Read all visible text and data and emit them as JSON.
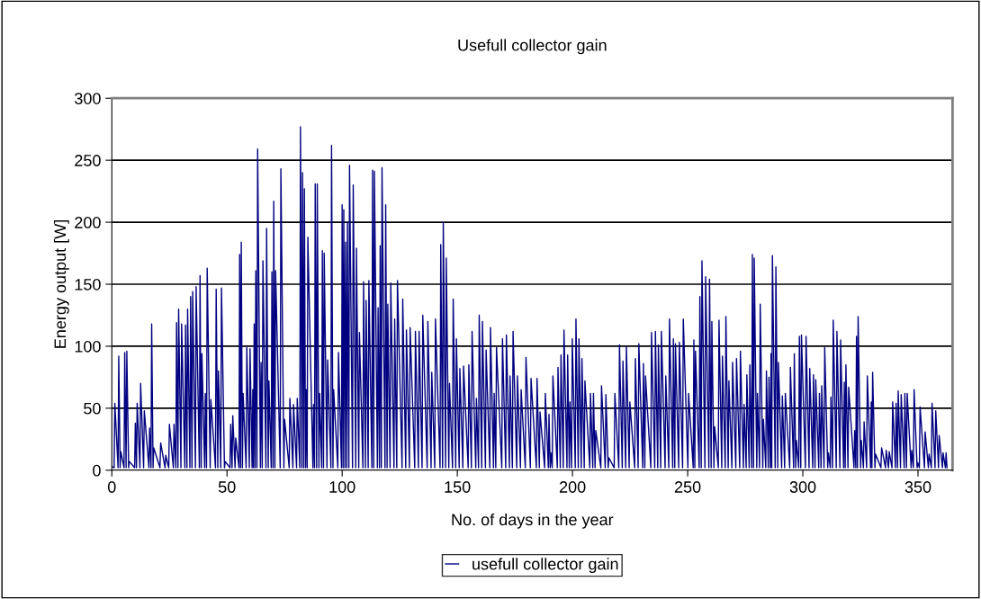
{
  "chart_data": {
    "type": "line",
    "title": "Usefull collector gain",
    "xlabel": "No. of days in the year",
    "ylabel": "Energy output [W]",
    "xlim": [
      0,
      365
    ],
    "xticks": [
      0,
      50,
      100,
      150,
      200,
      250,
      300,
      350
    ],
    "ylim": [
      0,
      300
    ],
    "yticks": [
      0,
      50,
      100,
      150,
      200,
      250,
      300
    ],
    "grid": "y",
    "legend": "bottom",
    "marker": "none",
    "line_style": "solid",
    "series": [
      {
        "name": "usefull collector gain",
        "color": "#000080",
        "x": [
          0,
          1.0,
          1.3,
          2.7,
          3.0,
          3.6,
          3.9,
          5.3,
          5.6,
          6.2,
          6.5,
          7.3,
          7.6,
          9.9,
          10.2,
          10.7,
          11.0,
          12.2,
          12.5,
          13.8,
          14.1,
          16.1,
          16.4,
          17.0,
          17.3,
          17.9,
          18.2,
          20.9,
          21.2,
          23.1,
          23.4,
          24.7,
          25.0,
          26.7,
          27.0,
          27.8,
          28.1,
          28.7,
          29.0,
          30.0,
          30.3,
          31.7,
          32.0,
          32.6,
          32.9,
          33.9,
          34.2,
          34.8,
          35.1,
          36.3,
          36.6,
          38.0,
          38.3,
          38.8,
          39.1,
          40.3,
          40.6,
          41.1,
          41.4,
          42.7,
          43.0,
          45.0,
          45.3,
          46.0,
          46.3,
          47.3,
          47.6,
          48.9,
          49.2,
          51.3,
          51.6,
          52.2,
          52.5,
          53.5,
          53.8,
          55.2,
          55.5,
          55.9,
          56.2,
          56.7,
          57.0,
          58.3,
          58.6,
          59.7,
          60.0,
          60.9,
          61.2,
          61.5,
          61.8,
          62.2,
          62.5,
          63.0,
          63.3,
          64.5,
          64.8,
          65.3,
          65.6,
          66.9,
          67.2,
          67.9,
          68.2,
          69.2,
          69.5,
          70.0,
          70.3,
          70.8,
          71.1,
          73.1,
          73.4,
          74.7,
          75.0,
          77.0,
          77.3,
          78.6,
          78.9,
          80.2,
          80.5,
          81.6,
          81.9,
          82.5,
          82.8,
          83.3,
          83.6,
          84.1,
          84.4,
          84.8,
          85.1,
          87.3,
          87.6,
          88.0,
          88.3,
          88.9,
          89.2,
          89.9,
          90.2,
          91.1,
          91.4,
          91.9,
          92.2,
          93.4,
          93.7,
          95.1,
          95.4,
          96.0,
          96.3,
          98.1,
          98.4,
          99.7,
          100.0,
          100.4,
          100.7,
          101.2,
          101.5,
          102.0,
          102.3,
          102.9,
          103.2,
          104.5,
          104.8,
          105.9,
          106.2,
          107.2,
          107.5,
          109.0,
          109.3,
          110.1,
          110.4,
          111.3,
          111.6,
          112.9,
          113.2,
          113.7,
          114.0,
          115.3,
          115.6,
          116.2,
          116.5,
          117.0,
          117.3,
          118.6,
          118.9,
          119.5,
          119.8,
          120.8,
          121.1,
          122.5,
          122.8,
          123.7,
          124.0,
          126.0,
          126.3,
          127.6,
          127.9,
          129.2,
          129.5,
          131.5,
          131.8,
          133.1,
          133.4,
          134.7,
          135.0,
          136.9,
          137.2,
          138.6,
          138.9,
          140.2,
          140.5,
          142.5,
          142.8,
          143.6,
          143.9,
          144.9,
          145.2,
          146.3,
          146.6,
          147.9,
          148.2,
          149.3,
          149.6,
          150.8,
          151.1,
          152.4,
          152.7,
          154.7,
          155.0,
          156.1,
          156.4,
          158.0,
          158.3,
          159.2,
          159.5,
          160.6,
          160.9,
          162.2,
          162.5,
          164.1,
          164.4,
          165.7,
          166.0,
          166.7,
          167.0,
          169.3,
          169.6,
          171.0,
          171.3,
          172.6,
          172.9,
          173.9,
          174.2,
          175.8,
          176.1,
          177.4,
          177.7,
          179.5,
          179.8,
          181.7,
          182.0,
          184.3,
          184.6,
          185.6,
          185.9,
          187.9,
          188.2,
          189.5,
          189.8,
          190.3,
          190.6,
          191.2,
          191.5,
          193.4,
          193.7,
          194.7,
          195.0,
          196.0,
          196.3,
          197.6,
          197.9,
          198.6,
          198.9,
          199.6,
          199.9,
          201.2,
          201.5,
          202.5,
          202.8,
          203.8,
          204.1,
          205.1,
          205.4,
          207.5,
          207.8,
          208.8,
          209.1,
          209.8,
          210.1,
          212.3,
          212.6,
          214.2,
          214.5,
          215.5,
          215.8,
          218.1,
          218.4,
          220.1,
          220.4,
          221.6,
          221.9,
          223.1,
          223.4,
          224.6,
          224.9,
          227.0,
          227.3,
          228.5,
          228.8,
          230.5,
          230.8,
          231.4,
          231.7,
          234.0,
          234.3,
          235.7,
          236.0,
          237.0,
          237.3,
          238.3,
          238.6,
          240.2,
          240.5,
          241.8,
          242.1,
          243.5,
          243.8,
          244.4,
          244.7,
          246.1,
          246.4,
          247.8,
          248.1,
          250.1,
          250.4,
          252.4,
          252.7,
          253.1,
          253.4,
          255.0,
          255.3,
          255.9,
          256.2,
          257.5,
          257.8,
          259.2,
          259.5,
          260.2,
          260.5,
          261.4,
          261.7,
          263.3,
          263.6,
          264.8,
          265.1,
          266.3,
          266.6,
          267.6,
          267.9,
          269.2,
          269.5,
          270.9,
          271.2,
          272.6,
          272.9,
          274.2,
          274.5,
          275.4,
          275.7,
          276.7,
          277.0,
          277.8,
          278.1,
          278.6,
          278.9,
          280.0,
          280.3,
          281.2,
          281.5,
          282.6,
          282.9,
          283.9,
          284.2,
          285.0,
          285.3,
          285.9,
          286.2,
          286.5,
          286.8,
          288.0,
          288.3,
          289.1,
          289.4,
          290.8,
          291.1,
          292.1,
          292.4,
          294.3,
          294.6,
          296.0,
          296.3,
          296.9,
          297.2,
          298.2,
          298.5,
          299.1,
          299.4,
          301.1,
          301.4,
          302.7,
          303.0,
          304.3,
          304.6,
          305.3,
          305.6,
          306.9,
          307.2,
          307.9,
          308.2,
          309.2,
          309.5,
          310.8,
          311.1,
          311.9,
          312.2,
          312.9,
          313.2,
          314.5,
          314.8,
          316.1,
          316.4,
          317.7,
          318.0,
          318.4,
          318.7,
          319.6,
          319.9,
          322.2,
          322.5,
          323.0,
          323.3,
          323.7,
          324.0,
          325.1,
          325.4,
          326.3,
          326.6,
          327.7,
          328.0,
          329.4,
          329.7,
          330.0,
          330.3,
          331.3,
          331.6,
          333.9,
          334.2,
          335.9,
          336.2,
          337.2,
          337.5,
          338.7,
          339.0,
          340.2,
          340.5,
          341.1,
          341.4,
          342.4,
          342.7,
          344.0,
          344.3,
          345.0,
          345.3,
          347.0,
          347.3,
          348.0,
          348.3,
          349.6,
          349.9,
          350.6,
          350.9,
          352.8,
          353.1,
          354.5,
          354.8,
          355.8,
          356.1,
          357.4,
          357.7,
          358.9,
          359.2,
          360.6,
          360.9,
          361.9,
          362.2,
          362.6
        ],
        "values": [
          3,
          2,
          54,
          2,
          92,
          2,
          15,
          2,
          95,
          2,
          96,
          2,
          7,
          2,
          38,
          2,
          54,
          2,
          70,
          2,
          48,
          2,
          34,
          2,
          118,
          2,
          18,
          2,
          22,
          2,
          12,
          2,
          37,
          2,
          37,
          2,
          119,
          2,
          130,
          2,
          118,
          2,
          117,
          2,
          130,
          2,
          140,
          2,
          144,
          2,
          148,
          2,
          157,
          2,
          94,
          2,
          62,
          2,
          163,
          2,
          57,
          2,
          146,
          2,
          80,
          2,
          147,
          2,
          7,
          2,
          37,
          2,
          44,
          2,
          26,
          2,
          174,
          2,
          184,
          2,
          62,
          2,
          99,
          2,
          98,
          2,
          65,
          2,
          118,
          2,
          161,
          2,
          259,
          2,
          87,
          2,
          169,
          2,
          195,
          2,
          72,
          2,
          160,
          2,
          217,
          2,
          161,
          2,
          243,
          2,
          41,
          2,
          58,
          2,
          53,
          2,
          58,
          2,
          277,
          2,
          240,
          2,
          227,
          2,
          65,
          2,
          188,
          2,
          53,
          2,
          231,
          2,
          231,
          2,
          62,
          2,
          177,
          2,
          175,
          2,
          89,
          2,
          262,
          2,
          65,
          2,
          95,
          2,
          214,
          2,
          210,
          2,
          184,
          2,
          200,
          2,
          246,
          2,
          230,
          2,
          179,
          2,
          111,
          2,
          152,
          2,
          137,
          2,
          153,
          2,
          242,
          2,
          241,
          2,
          131,
          2,
          181,
          2,
          244,
          2,
          214,
          2,
          134,
          2,
          151,
          2,
          122,
          2,
          153,
          2,
          138,
          2,
          113,
          2,
          115,
          2,
          112,
          2,
          112,
          2,
          125,
          2,
          120,
          2,
          79,
          2,
          122,
          2,
          182,
          2,
          200,
          2,
          171,
          2,
          70,
          2,
          138,
          2,
          106,
          2,
          82,
          2,
          84,
          2,
          85,
          2,
          112,
          2,
          58,
          2,
          125,
          2,
          120,
          2,
          97,
          2,
          115,
          2,
          62,
          2,
          99,
          2,
          106,
          2,
          109,
          2,
          76,
          2,
          112,
          2,
          76,
          2,
          65,
          2,
          91,
          2,
          74,
          2,
          74,
          2,
          47,
          2,
          62,
          2,
          45,
          2,
          14,
          2,
          76,
          2,
          83,
          2,
          93,
          2,
          113,
          2,
          93,
          2,
          55,
          2,
          106,
          2,
          122,
          2,
          106,
          2,
          90,
          2,
          72,
          2,
          62,
          2,
          62,
          2,
          32,
          2,
          68,
          2,
          61,
          2,
          10,
          2,
          62,
          2,
          101,
          2,
          88,
          2,
          100,
          2,
          55,
          2,
          90,
          2,
          102,
          2,
          86,
          2,
          76,
          2,
          111,
          2,
          112,
          2,
          101,
          2,
          112,
          2,
          76,
          2,
          122,
          2,
          106,
          2,
          102,
          2,
          103,
          2,
          122,
          2,
          62,
          2,
          105,
          2,
          96,
          2,
          140,
          2,
          169,
          2,
          156,
          2,
          154,
          2,
          120,
          2,
          35,
          2,
          121,
          2,
          92,
          2,
          124,
          2,
          72,
          2,
          87,
          2,
          90,
          2,
          96,
          2,
          53,
          2,
          77,
          2,
          85,
          2,
          174,
          2,
          171,
          2,
          62,
          2,
          134,
          2,
          41,
          2,
          80,
          2,
          75,
          2,
          94,
          2,
          173,
          2,
          164,
          2,
          87,
          2,
          60,
          2,
          62,
          2,
          83,
          2,
          94,
          2,
          24,
          2,
          108,
          2,
          109,
          2,
          108,
          2,
          82,
          2,
          77,
          2,
          73,
          2,
          62,
          2,
          68,
          2,
          99,
          2,
          14,
          2,
          59,
          2,
          121,
          2,
          112,
          2,
          105,
          2,
          71,
          2,
          85,
          2,
          67,
          2,
          32,
          2,
          108,
          2,
          124,
          2,
          24,
          2,
          39,
          2,
          76,
          2,
          55,
          2,
          79,
          2,
          13,
          2,
          18,
          2,
          16,
          2,
          15,
          2,
          55,
          2,
          54,
          2,
          64,
          2,
          61,
          2,
          62,
          2,
          62,
          2,
          16,
          2,
          65,
          2,
          6,
          2,
          51,
          2,
          31,
          2,
          13,
          2,
          54,
          2,
          48,
          2,
          28,
          2,
          14,
          2,
          14,
          2
        ]
      }
    ]
  }
}
